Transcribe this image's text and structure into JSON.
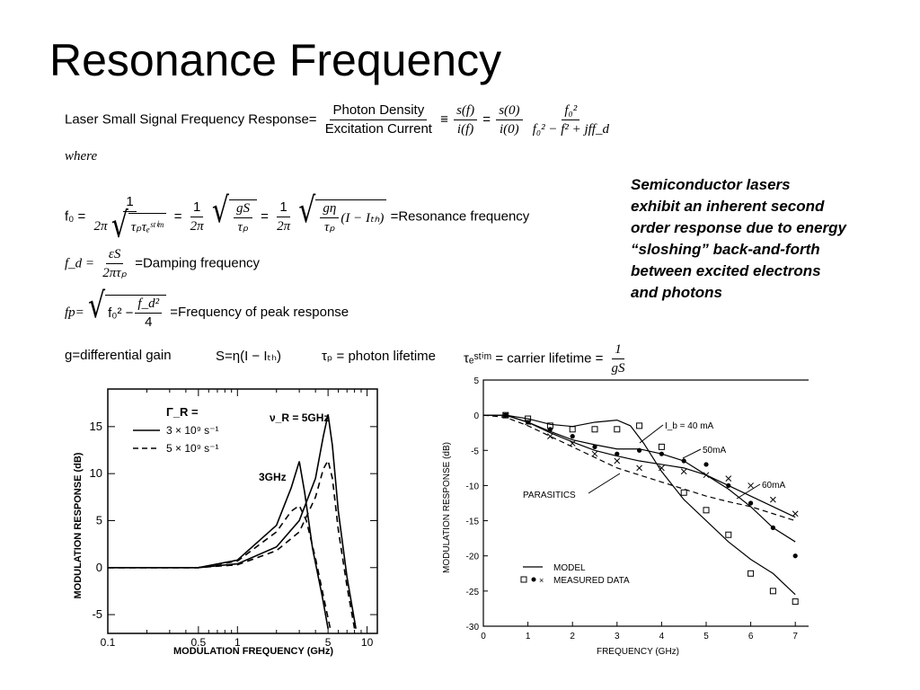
{
  "title": "Resonance Frequency",
  "response_eq": {
    "lhs": "Laser Small Signal Frequency Response=",
    "num1": "Photon Density",
    "den1": "Excitation Current",
    "equiv": "≡",
    "sfn": "s(f)",
    "ifd": "i(f)",
    "eq": "=",
    "s0": "s(0)",
    "i0": "i(0)",
    "f0sq": "f₀²",
    "den3": "f₀² − f² + jff_d"
  },
  "where": "where",
  "f0_eq": {
    "label": "f₀ =",
    "one": "1",
    "twopi": "2π",
    "tau": "τₚτₑˢᵗⁱᵐ",
    "gS": "gS",
    "taup": "τₚ",
    "geta": "gη",
    "I_Ith": "(I − Iₜₕ)",
    "eq": "=",
    "rhs": "=Resonance frequency"
  },
  "fd_eq": {
    "label": "f_d =",
    "num": "εS",
    "den": "2πτₚ",
    "rhs": "=Damping frequency"
  },
  "fp_eq": {
    "label": "fp=",
    "f0": "f₀² −",
    "fd2": "f_d²",
    "four": "4",
    "rhs": "=Frequency of peak response"
  },
  "defs": {
    "g": "g=differential gain",
    "S": "S=η(I − Iₜₕ)",
    "taup": "τₚ = photon lifetime",
    "taue": "τₑˢᵗⁱᵐ = carrier lifetime =",
    "one": "1",
    "gS": "gS"
  },
  "note": [
    "Semiconductor lasers",
    "exhibit an inherent second",
    "order response due to energy",
    "“sloshing” back-and-forth",
    "between excited electrons",
    "and photons"
  ],
  "chart_data": [
    {
      "type": "line",
      "xlabel": "MODULATION FREQUENCY (GHz)",
      "ylabel": "MODULATION RESPONSE (dB)",
      "x_ticks": [
        "0.1",
        "0.5",
        "1",
        "5",
        "10"
      ],
      "y_ticks": [
        "15",
        "10",
        "5",
        "0",
        "-5"
      ],
      "xlim": [
        0.1,
        12
      ],
      "ylim": [
        -7,
        19
      ],
      "x_scale": "log",
      "legend_title": "Γ_R =",
      "legend": [
        "3 × 10⁹ s⁻¹",
        "5 × 10⁹ s⁻¹"
      ],
      "annotations": [
        "ν_R = 5GHz",
        "3GHz"
      ],
      "series": [
        {
          "name": "3 × 10⁹ s⁻¹",
          "style": "solid",
          "points": [
            [
              0.1,
              0
            ],
            [
              0.5,
              0
            ],
            [
              1,
              0.8
            ],
            [
              2,
              4.5
            ],
            [
              2.6,
              8.5
            ],
            [
              3,
              11.3
            ],
            [
              3.3,
              8
            ],
            [
              3.8,
              2
            ],
            [
              4.5,
              -3
            ],
            [
              5,
              -6.5
            ]
          ]
        },
        {
          "name": "5 × 10⁹ s⁻¹",
          "style": "dashed",
          "points": [
            [
              0.1,
              0
            ],
            [
              0.5,
              0
            ],
            [
              1,
              0.7
            ],
            [
              2,
              3.8
            ],
            [
              2.6,
              6
            ],
            [
              3,
              6.6
            ],
            [
              3.4,
              5
            ],
            [
              4,
              1
            ],
            [
              4.6,
              -3
            ],
            [
              5.2,
              -6.5
            ]
          ]
        },
        {
          "name": "",
          "style": "solid",
          "points": [
            [
              0.1,
              0
            ],
            [
              0.5,
              0
            ],
            [
              1,
              0.4
            ],
            [
              2,
              2.2
            ],
            [
              3,
              5
            ],
            [
              4,
              9.5
            ],
            [
              4.6,
              14
            ],
            [
              5,
              16.3
            ],
            [
              5.4,
              13
            ],
            [
              6,
              6
            ],
            [
              7,
              -1
            ],
            [
              8.2,
              -6.5
            ]
          ]
        },
        {
          "name": "",
          "style": "dashed",
          "points": [
            [
              0.1,
              0
            ],
            [
              0.5,
              0
            ],
            [
              1,
              0.3
            ],
            [
              2,
              1.8
            ],
            [
              3,
              3.8
            ],
            [
              4,
              7.5
            ],
            [
              4.6,
              10.5
            ],
            [
              5,
              11.4
            ],
            [
              5.4,
              9.5
            ],
            [
              6,
              4
            ],
            [
              7,
              -2
            ],
            [
              8,
              -6.5
            ]
          ]
        }
      ]
    },
    {
      "type": "scatter",
      "xlabel": "FREQUENCY (GHz)",
      "ylabel": "MODULATION RESPONSE (dB)",
      "x_ticks": [
        "0",
        "1",
        "2",
        "3",
        "4",
        "5",
        "6",
        "7"
      ],
      "y_ticks": [
        "5",
        "0",
        "-5",
        "-10",
        "-15",
        "-20",
        "-25",
        "-30"
      ],
      "xlim": [
        0,
        7.5
      ],
      "ylim": [
        -30,
        5
      ],
      "legend": [
        "MODEL",
        "MEASURED DATA"
      ],
      "annotations": [
        "I_b = 40 mA",
        "50mA",
        "60mA",
        "PARASITICS"
      ],
      "series": [
        {
          "name": "I_b = 40 mA",
          "marker": "square",
          "points": [
            [
              0.5,
              0
            ],
            [
              1,
              -0.5
            ],
            [
              1.5,
              -1.5
            ],
            [
              2,
              -2
            ],
            [
              2.5,
              -2
            ],
            [
              3,
              -2
            ],
            [
              3.5,
              -1.5
            ],
            [
              4,
              -4.5
            ],
            [
              4.5,
              -11
            ],
            [
              5,
              -13.5
            ],
            [
              5.5,
              -17
            ],
            [
              6,
              -22.5
            ],
            [
              6.5,
              -25
            ],
            [
              7,
              -26.5
            ]
          ],
          "model": [
            [
              0,
              0
            ],
            [
              0.5,
              0
            ],
            [
              1,
              -0.5
            ],
            [
              1.5,
              -1.3
            ],
            [
              2,
              -1.6
            ],
            [
              2.5,
              -1
            ],
            [
              3,
              -0.7
            ],
            [
              3.3,
              -1.5
            ],
            [
              3.6,
              -4
            ],
            [
              4,
              -8
            ],
            [
              4.5,
              -12
            ],
            [
              5,
              -15
            ],
            [
              5.5,
              -18
            ],
            [
              6,
              -20.5
            ],
            [
              6.5,
              -22.5
            ],
            [
              7,
              -25.5
            ]
          ]
        },
        {
          "name": "50mA",
          "marker": "dot",
          "points": [
            [
              0.5,
              0
            ],
            [
              1,
              -1
            ],
            [
              1.5,
              -2
            ],
            [
              2,
              -3
            ],
            [
              2.5,
              -4.5
            ],
            [
              3,
              -5.5
            ],
            [
              3.5,
              -5
            ],
            [
              4,
              -5.5
            ],
            [
              4.5,
              -6.5
            ],
            [
              5,
              -7
            ],
            [
              5.5,
              -10
            ],
            [
              6,
              -12.5
            ],
            [
              6.5,
              -16
            ],
            [
              7,
              -20
            ]
          ],
          "model": [
            [
              0,
              0
            ],
            [
              0.5,
              0
            ],
            [
              1,
              -1
            ],
            [
              1.5,
              -2.3
            ],
            [
              2,
              -3.5
            ],
            [
              2.5,
              -4.2
            ],
            [
              3,
              -4.8
            ],
            [
              3.5,
              -4.8
            ],
            [
              4,
              -5.5
            ],
            [
              4.5,
              -6.5
            ],
            [
              5,
              -8.5
            ],
            [
              5.5,
              -10.5
            ],
            [
              6,
              -13
            ],
            [
              6.5,
              -16
            ],
            [
              7,
              -18
            ]
          ]
        },
        {
          "name": "60mA",
          "marker": "x",
          "points": [
            [
              0.5,
              0
            ],
            [
              1,
              -1
            ],
            [
              1.5,
              -3
            ],
            [
              2,
              -4
            ],
            [
              2.5,
              -5.5
            ],
            [
              3,
              -6.5
            ],
            [
              3.5,
              -7.5
            ],
            [
              4,
              -7.5
            ],
            [
              4.5,
              -8
            ],
            [
              5,
              -8.5
            ],
            [
              5.5,
              -9
            ],
            [
              6,
              -10
            ],
            [
              6.5,
              -12
            ],
            [
              7,
              -14
            ]
          ],
          "model": [
            [
              0,
              0
            ],
            [
              0.5,
              0
            ],
            [
              1,
              -1
            ],
            [
              1.5,
              -2.5
            ],
            [
              2,
              -3.8
            ],
            [
              2.5,
              -5
            ],
            [
              3,
              -5.8
            ],
            [
              3.5,
              -6.5
            ],
            [
              4,
              -7
            ],
            [
              4.5,
              -7.5
            ],
            [
              5,
              -8.5
            ],
            [
              5.5,
              -10
            ],
            [
              6,
              -11.5
            ],
            [
              6.5,
              -13
            ],
            [
              7,
              -14.5
            ]
          ]
        },
        {
          "name": "PARASITICS",
          "style": "dashed",
          "model": [
            [
              0,
              0
            ],
            [
              0.5,
              -0.3
            ],
            [
              1,
              -1.5
            ],
            [
              1.5,
              -3
            ],
            [
              2,
              -4.5
            ],
            [
              2.5,
              -6
            ],
            [
              3,
              -7.5
            ],
            [
              3.5,
              -8.5
            ],
            [
              4,
              -9.5
            ],
            [
              4.5,
              -10.5
            ],
            [
              5,
              -11.5
            ],
            [
              5.5,
              -12.3
            ],
            [
              6,
              -13
            ],
            [
              6.5,
              -14
            ],
            [
              7,
              -15
            ]
          ]
        }
      ]
    }
  ]
}
